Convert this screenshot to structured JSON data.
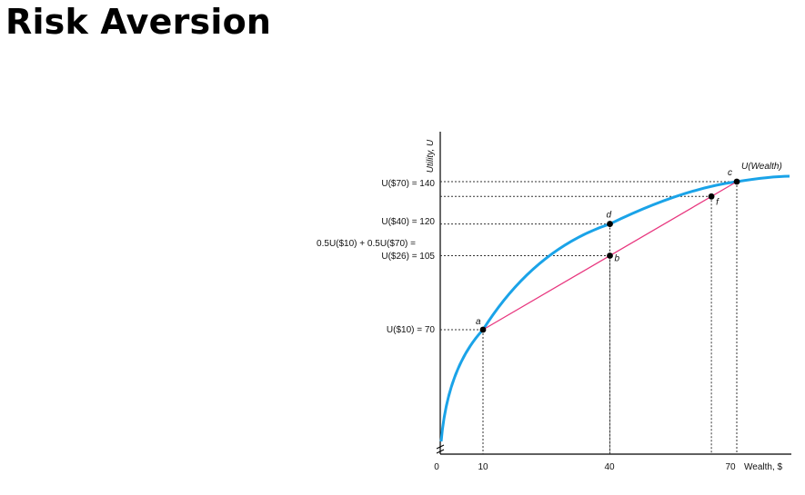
{
  "title": "Risk Aversion",
  "colors": {
    "curve": "#1aa3e8",
    "chord": "#e8377f",
    "guides": "#333333"
  },
  "diagram": {
    "y_axis_label": "Utility, U",
    "x_axis_label": "Wealth, $",
    "curve_label": "U(Wealth)",
    "origin_label": "0",
    "x_ticks": [
      {
        "value": 10,
        "label": "10"
      },
      {
        "value": 40,
        "label": "40"
      },
      {
        "value": 70,
        "label": "70"
      }
    ],
    "y_labels": {
      "u70": "U($70) = 140",
      "u40": "U($40) = 120",
      "expected_line1": "0.5U($10) + 0.5U($70) =",
      "expected_line2": "U($26) = 105",
      "u10": "U($10) = 70"
    },
    "points": [
      {
        "id": "a",
        "wealth": 10,
        "utility": 70
      },
      {
        "id": "b",
        "wealth": 40,
        "utility": 105
      },
      {
        "id": "c",
        "wealth": 70,
        "utility": 140
      },
      {
        "id": "d",
        "wealth": 40,
        "utility": 120
      },
      {
        "id": "f",
        "wealth": 64,
        "utility": 133
      }
    ]
  }
}
